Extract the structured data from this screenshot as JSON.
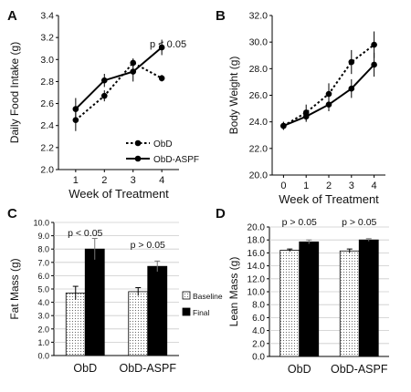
{
  "colors": {
    "ink": "#000000",
    "grid": "#cccccc",
    "baseline_fill": "#ffffff",
    "final_fill": "#000000"
  },
  "chart_data": [
    {
      "panel": "A",
      "type": "line",
      "xlabel": "Week of Treatment",
      "ylabel": "Daily Food Intake (g)",
      "x": [
        1,
        2,
        3,
        4
      ],
      "xticks": [
        "1",
        "2",
        "3",
        "4"
      ],
      "xlim": [
        0.4,
        4.6
      ],
      "ylim": [
        2.0,
        3.4
      ],
      "yticks": [
        "2.0",
        "2.2",
        "2.4",
        "2.6",
        "2.8",
        "3.0",
        "3.2",
        "3.4"
      ],
      "grid": false,
      "legend": "bottom-right",
      "annotation": "p < 0.05",
      "series": [
        {
          "name": "ObD",
          "style": "dotted",
          "values": [
            2.45,
            2.67,
            2.97,
            2.83
          ],
          "errors": [
            0.1,
            0.05,
            0.04,
            0.03
          ]
        },
        {
          "name": "ObD-ASPF",
          "style": "solid",
          "values": [
            2.55,
            2.81,
            2.89,
            3.11
          ],
          "errors": [
            0.1,
            0.06,
            0.09,
            0.07
          ]
        }
      ]
    },
    {
      "panel": "B",
      "type": "line",
      "xlabel": "Week of Treatment",
      "ylabel": "Body Weight (g)",
      "x": [
        0,
        1,
        2,
        3,
        4
      ],
      "xticks": [
        "0",
        "1",
        "2",
        "3",
        "4"
      ],
      "xlim": [
        -0.5,
        4.5
      ],
      "ylim": [
        20.0,
        32.0
      ],
      "yticks": [
        "20.0",
        "22.0",
        "24.0",
        "26.0",
        "28.0",
        "30.0",
        "32.0"
      ],
      "grid": false,
      "series": [
        {
          "name": "ObD",
          "style": "dotted",
          "values": [
            23.7,
            24.7,
            26.1,
            28.5,
            29.8
          ],
          "errors": [
            0.3,
            0.6,
            0.8,
            0.9,
            1.0
          ]
        },
        {
          "name": "ObD-ASPF",
          "style": "solid",
          "values": [
            23.7,
            24.4,
            25.3,
            26.5,
            28.3
          ],
          "errors": [
            0.3,
            0.4,
            0.5,
            0.7,
            0.9
          ]
        }
      ]
    },
    {
      "panel": "C",
      "type": "bar",
      "ylabel": "Fat Mass (g)",
      "categories": [
        "ObD",
        "ObD-ASPF"
      ],
      "ylim": [
        0.0,
        10.0
      ],
      "yticks": [
        "0.0",
        "1.0",
        "2.0",
        "3.0",
        "4.0",
        "5.0",
        "6.0",
        "7.0",
        "8.0",
        "9.0",
        "10.0"
      ],
      "grid": true,
      "legend": "right",
      "annotations": [
        "p < 0.05",
        "p > 0.05"
      ],
      "series": [
        {
          "name": "Baseline",
          "values": [
            4.7,
            4.8
          ],
          "errors": [
            0.5,
            0.3
          ]
        },
        {
          "name": "Final",
          "values": [
            8.0,
            6.7
          ],
          "errors": [
            0.8,
            0.4
          ]
        }
      ]
    },
    {
      "panel": "D",
      "type": "bar",
      "ylabel": "Lean Mass (g)",
      "categories": [
        "ObD",
        "ObD-ASPF"
      ],
      "ylim": [
        0.0,
        20.0
      ],
      "yticks": [
        "0.0",
        "2.0",
        "4.0",
        "6.0",
        "8.0",
        "10.0",
        "12.0",
        "14.0",
        "16.0",
        "18.0",
        "20.0"
      ],
      "grid": true,
      "annotations": [
        "p > 0.05",
        "p > 0.05"
      ],
      "series": [
        {
          "name": "Baseline",
          "values": [
            16.4,
            16.3
          ],
          "errors": [
            0.2,
            0.3
          ]
        },
        {
          "name": "Final",
          "values": [
            17.7,
            18.0
          ],
          "errors": [
            0.3,
            0.2
          ]
        }
      ]
    }
  ]
}
